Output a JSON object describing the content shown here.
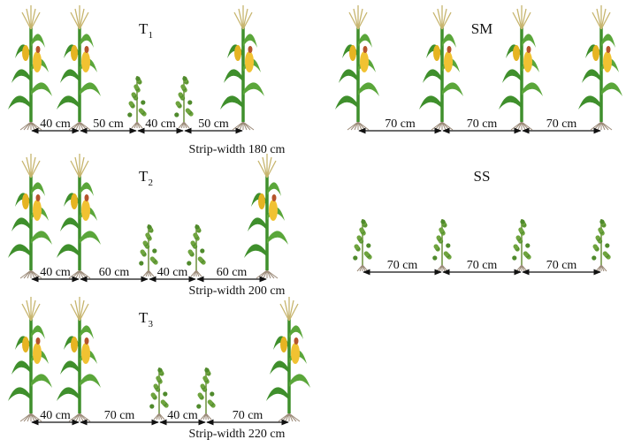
{
  "panels": [
    {
      "label": "T",
      "subscript": "1",
      "spacings": [
        "40 cm",
        "50 cm",
        "40 cm",
        "50 cm"
      ],
      "strip_width": "Strip-width 180 cm"
    },
    {
      "label": "T",
      "subscript": "2",
      "spacings": [
        "40 cm",
        "60 cm",
        "40 cm",
        "60 cm"
      ],
      "strip_width": "Strip-width 200 cm"
    },
    {
      "label": "T",
      "subscript": "3",
      "spacings": [
        "40 cm",
        "70 cm",
        "40 cm",
        "70 cm"
      ],
      "strip_width": "Strip-width 220 cm"
    },
    {
      "label": "SM",
      "spacings": [
        "70 cm",
        "70 cm",
        "70 cm"
      ]
    },
    {
      "label": "SS",
      "spacings": [
        "70 cm",
        "70 cm",
        "70 cm"
      ]
    }
  ]
}
